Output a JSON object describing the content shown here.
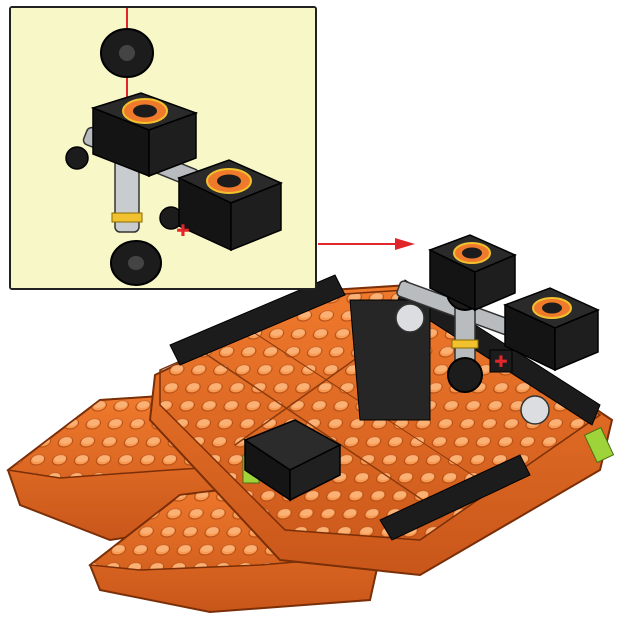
{
  "instruction_step": {
    "callout": {
      "background_color": "#f8f7c8",
      "border_color": "#222222"
    },
    "colors": {
      "hull_orange": "#f07a2c",
      "hull_orange_dark": "#c9561a",
      "hull_orange_light": "#f89a52",
      "black_brick": "#1c1c1c",
      "light_gray": "#b9bcbf",
      "dark_gray": "#6d7073",
      "arrow_red": "#e0262a",
      "lime_accent": "#9ed43a",
      "yellow_ring": "#f2c12e"
    },
    "icons": [
      "down-arrow-icon",
      "right-arrow-icon",
      "flame-emblem-icon",
      "red-cross-axle-icon"
    ]
  }
}
